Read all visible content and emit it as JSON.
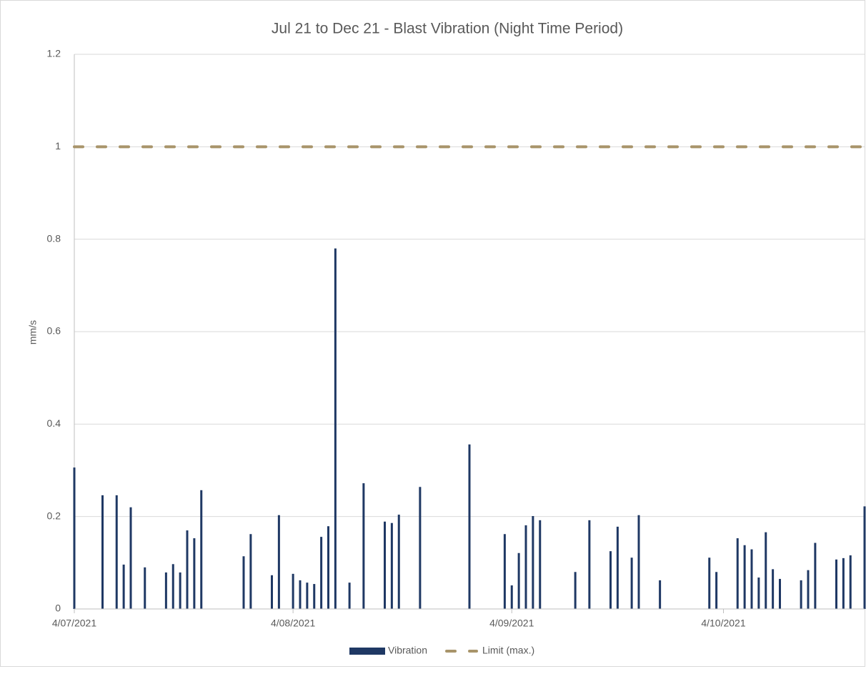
{
  "chart_data": {
    "type": "bar",
    "title": "Jul 21 to Dec 21 - Blast Vibration (Night Time Period)",
    "y_label": "mm/s",
    "xlim": [
      "4/07/2021",
      "24/10/2021"
    ],
    "xticks": [
      "4/07/2021",
      "4/08/2021",
      "4/09/2021",
      "4/10/2021"
    ],
    "ylim": [
      0,
      1.2
    ],
    "yticks": [
      0,
      0.2,
      0.4,
      0.6,
      0.8,
      1,
      1.2
    ],
    "grid": true,
    "legend": "bottom",
    "series": [
      {
        "name": "Vibration",
        "type": "bar",
        "color": "#1f3864",
        "x": [
          "4/07/2021",
          "8/07/2021",
          "10/07/2021",
          "11/07/2021",
          "12/07/2021",
          "14/07/2021",
          "17/07/2021",
          "18/07/2021",
          "19/07/2021",
          "20/07/2021",
          "21/07/2021",
          "22/07/2021",
          "28/07/2021",
          "29/07/2021",
          "1/08/2021",
          "2/08/2021",
          "4/08/2021",
          "5/08/2021",
          "6/08/2021",
          "7/08/2021",
          "8/08/2021",
          "9/08/2021",
          "10/08/2021",
          "12/08/2021",
          "14/08/2021",
          "17/08/2021",
          "18/08/2021",
          "19/08/2021",
          "22/08/2021",
          "29/08/2021",
          "3/09/2021",
          "4/09/2021",
          "5/09/2021",
          "6/09/2021",
          "7/09/2021",
          "8/09/2021",
          "13/09/2021",
          "15/09/2021",
          "18/09/2021",
          "19/09/2021",
          "21/09/2021",
          "22/09/2021",
          "25/09/2021",
          "2/10/2021",
          "3/10/2021",
          "6/10/2021",
          "7/10/2021",
          "8/10/2021",
          "9/10/2021",
          "10/10/2021",
          "11/10/2021",
          "12/10/2021",
          "15/10/2021",
          "16/10/2021",
          "17/10/2021",
          "20/10/2021",
          "21/10/2021",
          "22/10/2021",
          "24/10/2021"
        ],
        "values": [
          0.306,
          0.246,
          0.246,
          0.096,
          0.22,
          0.09,
          0.079,
          0.097,
          0.079,
          0.17,
          0.153,
          0.257,
          0.114,
          0.162,
          0.073,
          0.203,
          0.076,
          0.062,
          0.057,
          0.054,
          0.156,
          0.179,
          0.78,
          0.057,
          0.272,
          0.189,
          0.186,
          0.204,
          0.264,
          0.356,
          0.162,
          0.051,
          0.121,
          0.181,
          0.201,
          0.192,
          0.08,
          0.192,
          0.125,
          0.178,
          0.111,
          0.203,
          0.062,
          0.111,
          0.08,
          0.153,
          0.138,
          0.129,
          0.068,
          0.166,
          0.086,
          0.065,
          0.062,
          0.084,
          0.143,
          0.107,
          0.11,
          0.116,
          0.222
        ]
      },
      {
        "name": "Limit (max.)",
        "type": "line",
        "dashed": true,
        "color": "#a8946a",
        "x": [
          "4/07/2021",
          "24/10/2021"
        ],
        "values": [
          1,
          1
        ]
      }
    ]
  }
}
